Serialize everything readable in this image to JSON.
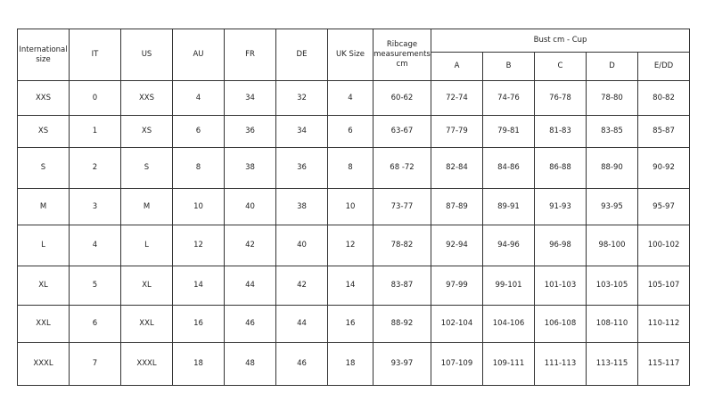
{
  "headers": {
    "international": "International size",
    "it": "IT",
    "us": "US",
    "au": "AU",
    "fr": "FR",
    "de": "DE",
    "uk": "UK Size",
    "ribcage": "Ribcage measurements cm",
    "bust_group": "Bust cm - Cup",
    "cups": [
      "A",
      "B",
      "C",
      "D",
      "E/DD"
    ]
  },
  "rows": [
    [
      "XXS",
      "0",
      "XXS",
      "4",
      "34",
      "32",
      "4",
      "60-62",
      "72-74",
      "74-76",
      "76-78",
      "78-80",
      "80-82"
    ],
    [
      "XS",
      "1",
      "XS",
      "6",
      "36",
      "34",
      "6",
      "63-67",
      "77-79",
      "79-81",
      "81-83",
      "83-85",
      "85-87"
    ],
    [
      "S",
      "2",
      "S",
      "8",
      "38",
      "36",
      "8",
      "68 -72",
      "82-84",
      "84-86",
      "86-88",
      "88-90",
      "90-92"
    ],
    [
      "M",
      "3",
      "M",
      "10",
      "40",
      "38",
      "10",
      "73-77",
      "87-89",
      "89-91",
      "91-93",
      "93-95",
      "95-97"
    ],
    [
      "L",
      "4",
      "L",
      "12",
      "42",
      "40",
      "12",
      "78-82",
      "92-94",
      "94-96",
      "96-98",
      "98-100",
      "100-102"
    ],
    [
      "XL",
      "5",
      "XL",
      "14",
      "44",
      "42",
      "14",
      "83-87",
      "97-99",
      "99-101",
      "101-103",
      "103-105",
      "105-107"
    ],
    [
      "XXL",
      "6",
      "XXL",
      "16",
      "46",
      "44",
      "16",
      "88-92",
      "102-104",
      "104-106",
      "106-108",
      "108-110",
      "110-112"
    ],
    [
      "XXXL",
      "7",
      "XXXL",
      "18",
      "48",
      "46",
      "18",
      "93-97",
      "107-109",
      "109-111",
      "111-113",
      "113-115",
      "115-117"
    ]
  ]
}
